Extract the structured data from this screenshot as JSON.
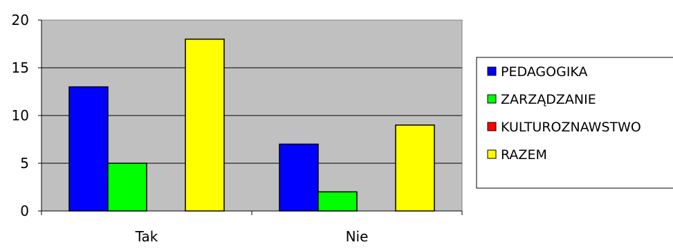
{
  "chart_data": {
    "type": "bar",
    "title": "",
    "xlabel": "",
    "ylabel": "",
    "ylim": [
      0,
      20
    ],
    "yticks": [
      0,
      5,
      10,
      15,
      20
    ],
    "grid": true,
    "legend_position": "right",
    "plot_background": "#c0c0c0",
    "categories": [
      "Tak",
      "Nie"
    ],
    "series": [
      {
        "name": "PEDAGOGIKA",
        "color": "#0000ff",
        "values": [
          13,
          7
        ]
      },
      {
        "name": "ZARZĄDZANIE",
        "color": "#00ff00",
        "values": [
          5,
          2
        ]
      },
      {
        "name": "KULTUROZNAWSTWO",
        "color": "#ff0000",
        "values": [
          0,
          0
        ]
      },
      {
        "name": "RAZEM",
        "color": "#ffff00",
        "values": [
          18,
          9
        ]
      }
    ]
  }
}
